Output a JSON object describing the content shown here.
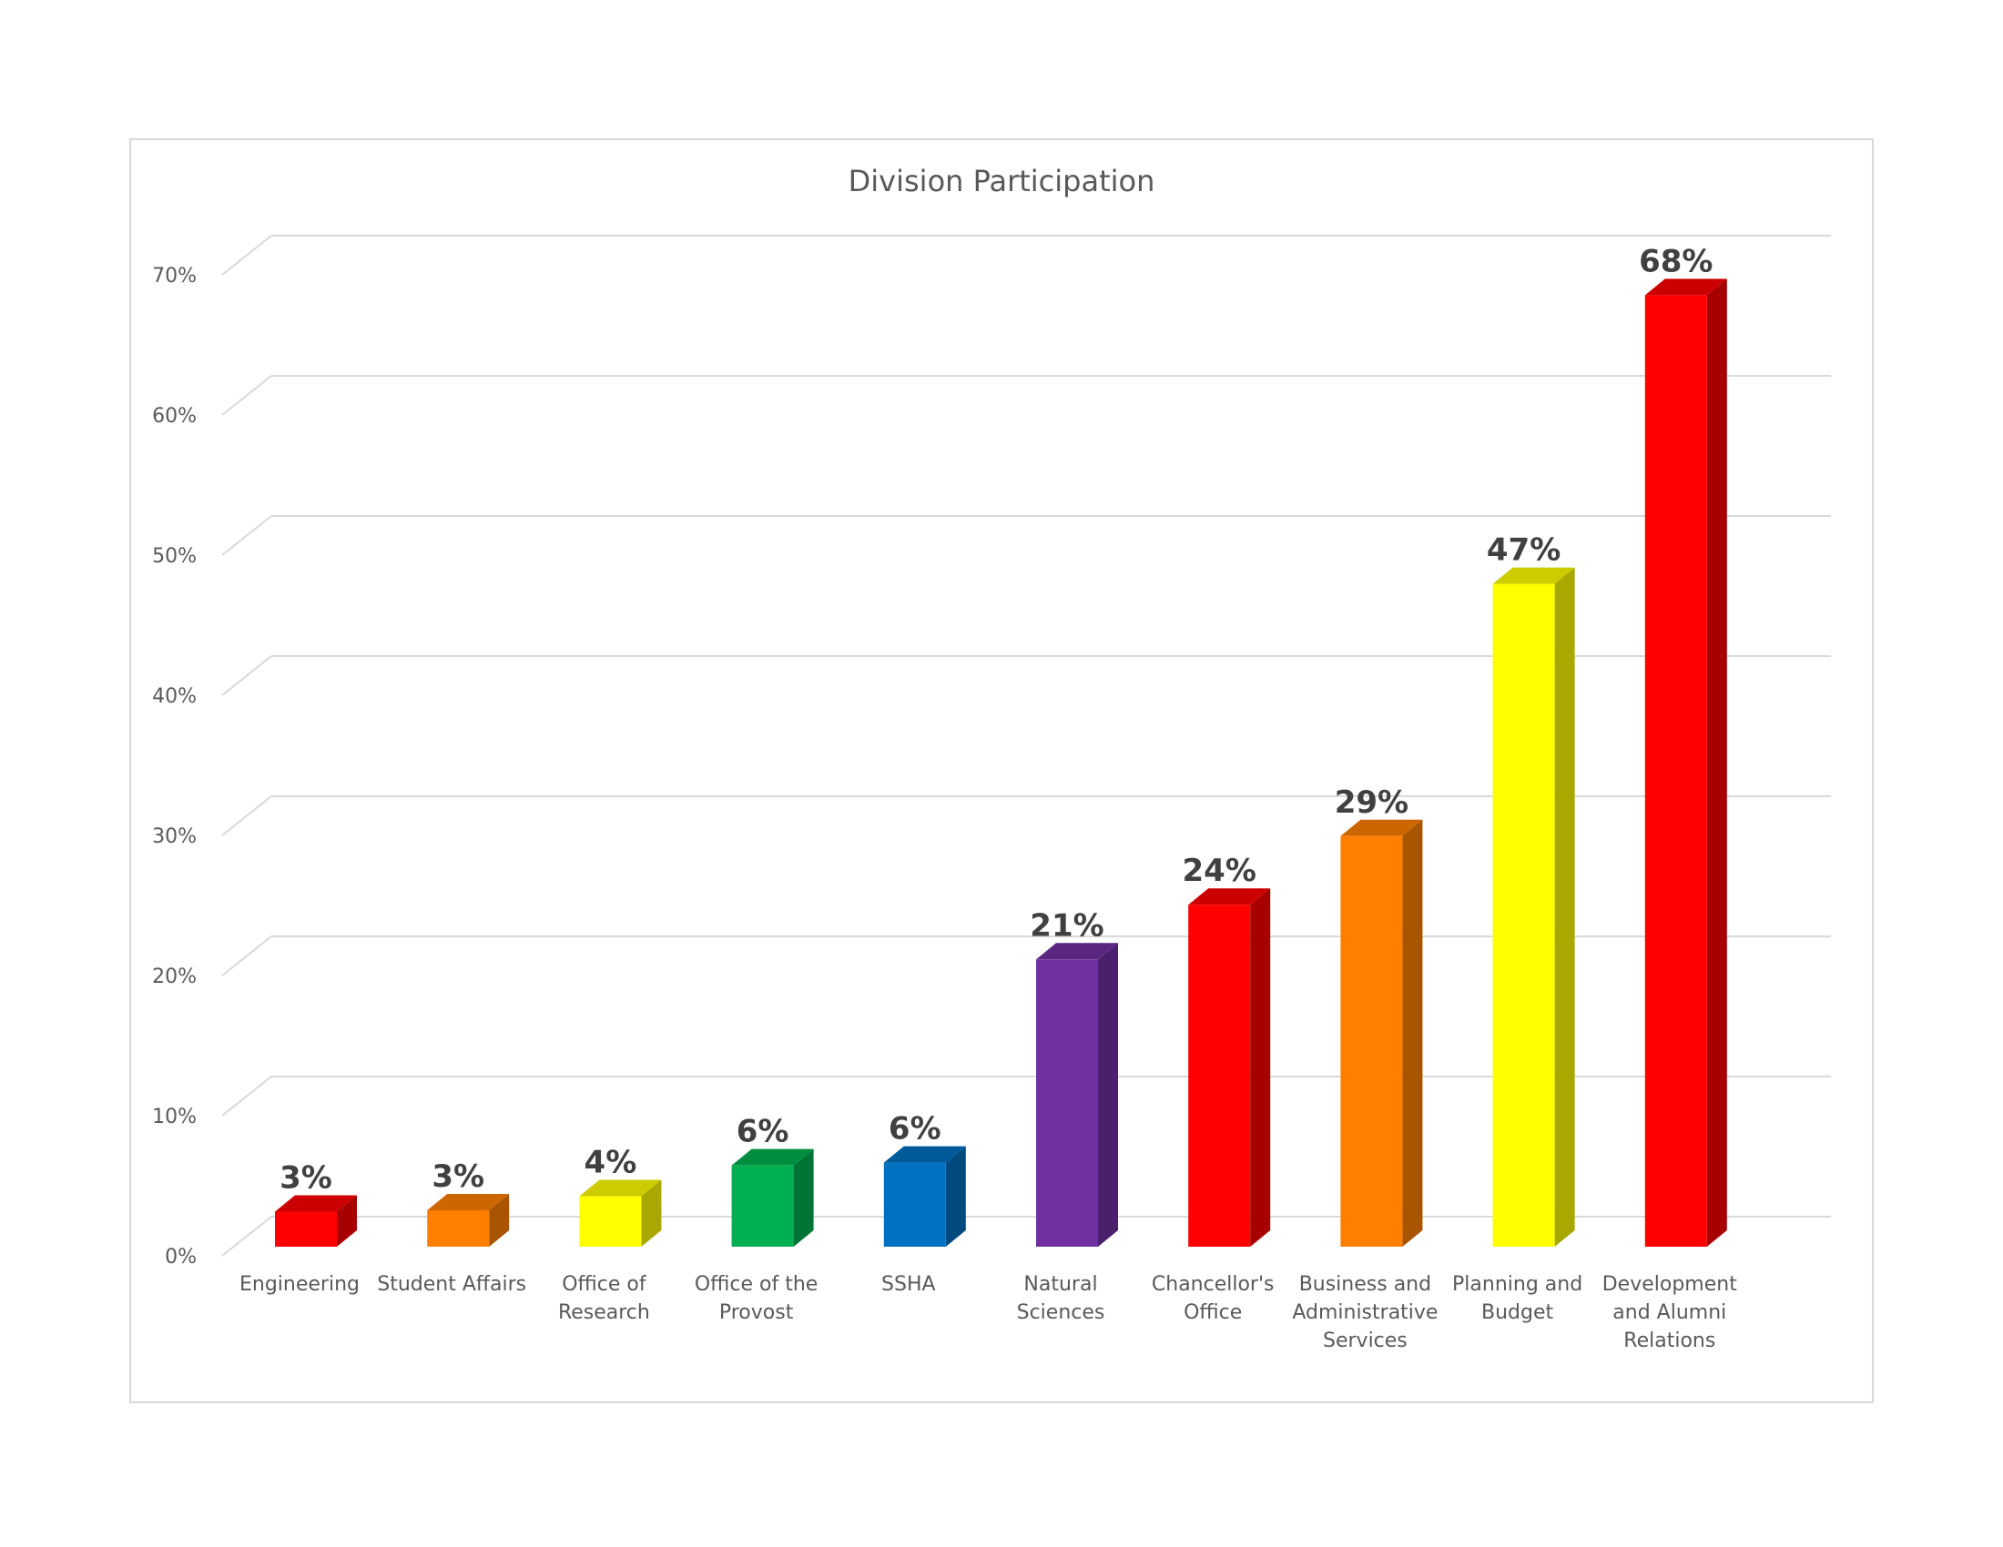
{
  "chart_data": {
    "type": "bar",
    "title": "Division Participation",
    "xlabel": "",
    "ylabel": "",
    "ylim": [
      0,
      70
    ],
    "yticks": [
      "0%",
      "10%",
      "20%",
      "30%",
      "40%",
      "50%",
      "60%",
      "70%"
    ],
    "grid": true,
    "legend": "none",
    "categories": [
      "Engineering",
      "Student Affairs",
      "Office of Research",
      "Office of the Provost",
      "SSHA",
      "Natural Sciences",
      "Chancellor's Office",
      "Business and Administrative Services",
      "Planning and Budget",
      "Development and Alumni Relations"
    ],
    "category_lines": [
      [
        "Engineering"
      ],
      [
        "Student Affairs"
      ],
      [
        "Office of",
        "Research"
      ],
      [
        "Office of the",
        "Provost"
      ],
      [
        "SSHA"
      ],
      [
        "Natural",
        "Sciences"
      ],
      [
        "Chancellor's",
        "Office"
      ],
      [
        "Business and",
        "Administrative",
        "Services"
      ],
      [
        "Planning and",
        "Budget"
      ],
      [
        "Development",
        "and Alumni",
        "Relations"
      ]
    ],
    "values": [
      2.5,
      2.6,
      3.6,
      5.8,
      6.0,
      20.5,
      24.4,
      29.3,
      47.3,
      67.9
    ],
    "data_labels": [
      "3%",
      "3%",
      "4%",
      "6%",
      "6%",
      "21%",
      "24%",
      "29%",
      "47%",
      "68%"
    ],
    "colors": [
      "#ff0000",
      "#ff8000",
      "#ffff00",
      "#00b050",
      "#0070c0",
      "#7030a0",
      "#ff0000",
      "#ff8000",
      "#ffff00",
      "#ff0000"
    ]
  }
}
